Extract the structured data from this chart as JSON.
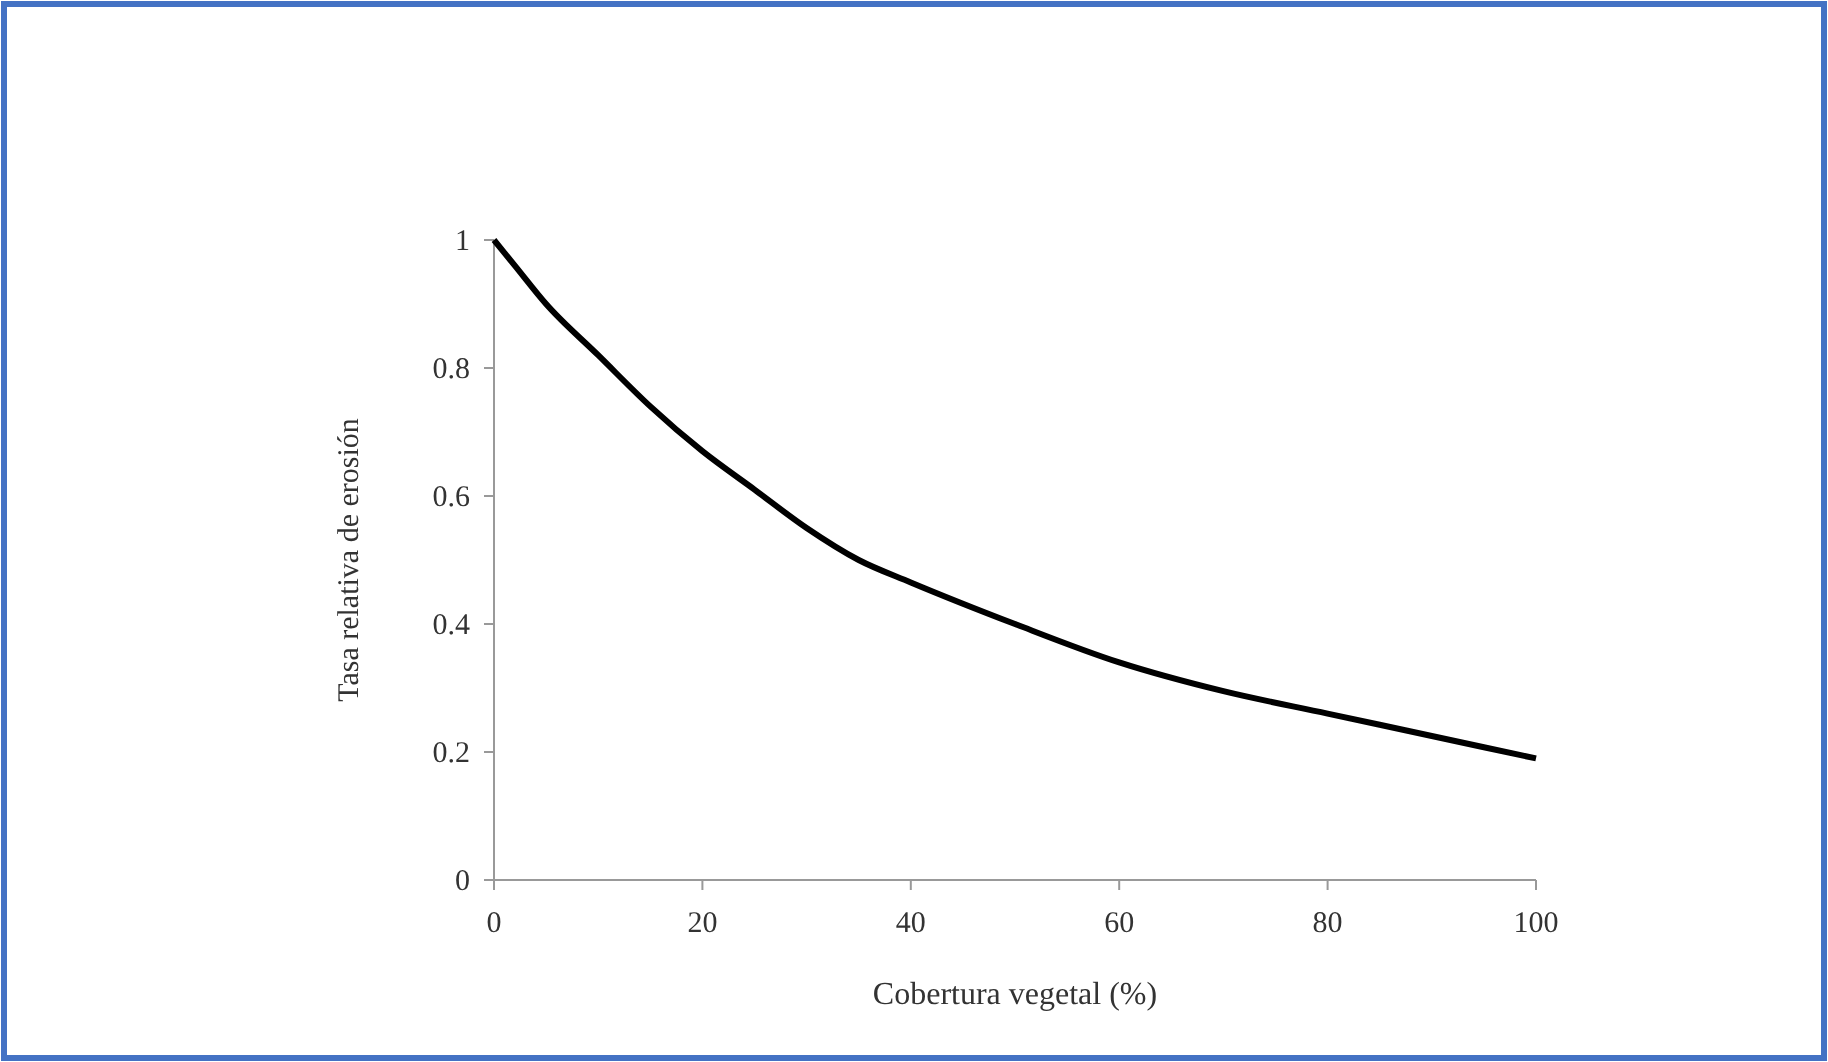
{
  "chart_data": {
    "type": "line",
    "xlabel": "Cobertura vegetal (%)",
    "ylabel": "Tasa relativa de erosión",
    "x": [
      0,
      2,
      5,
      10,
      15,
      20,
      25,
      30,
      35,
      40,
      50,
      60,
      70,
      80,
      90,
      100
    ],
    "series": [
      {
        "color": "#000000",
        "values": [
          1,
          0.96,
          0.9,
          0.82,
          0.74,
          0.67,
          0.61,
          0.55,
          0.5,
          0.465,
          0.4,
          0.34,
          0.295,
          0.26,
          0.225,
          0.19
        ]
      }
    ],
    "xlim": [
      0,
      100
    ],
    "xticks": [
      0,
      20,
      40,
      60,
      80,
      100
    ],
    "ylim": [
      0,
      1
    ],
    "yticks": [
      0,
      0.2,
      0.4,
      0.6,
      0.8,
      1
    ],
    "grid": false,
    "marker": "none",
    "line_style": "solid"
  }
}
